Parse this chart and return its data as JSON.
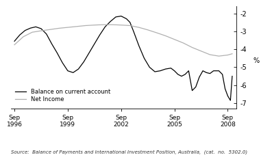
{
  "title": "",
  "ylabel": "%",
  "source_text": "Source:  Balance of Payments and International Investment Position, Australia,  (cat.  no.  5302.0)",
  "x_tick_labels": [
    "Sep\n1996",
    "Sep\n1999",
    "Sep\n2002",
    "Sep\n2005",
    "Sep\n2008"
  ],
  "x_tick_positions": [
    0,
    3,
    6,
    9,
    12
  ],
  "ylim": [
    -7.3,
    -1.6
  ],
  "yticks": [
    -7,
    -6,
    -5,
    -4,
    -3,
    -2
  ],
  "legend_entries": [
    "Balance on current account",
    "Net Income"
  ],
  "line_colors": [
    "#000000",
    "#b0b0b0"
  ],
  "balance_x": [
    0,
    0.3,
    0.6,
    0.9,
    1.2,
    1.5,
    1.8,
    2.1,
    2.4,
    2.7,
    3.0,
    3.3,
    3.6,
    3.9,
    4.2,
    4.5,
    4.8,
    5.1,
    5.4,
    5.7,
    6.0,
    6.3,
    6.5,
    6.7,
    7.0,
    7.3,
    7.6,
    7.9,
    8.2,
    8.5,
    8.8,
    9.0,
    9.2,
    9.4,
    9.6,
    9.8,
    10.0,
    10.2,
    10.4,
    10.6,
    10.8,
    11.0,
    11.2,
    11.5,
    11.7,
    11.85,
    12.0,
    12.15,
    12.25
  ],
  "balance_y": [
    -3.55,
    -3.2,
    -2.95,
    -2.82,
    -2.75,
    -2.85,
    -3.15,
    -3.7,
    -4.2,
    -4.75,
    -5.2,
    -5.3,
    -5.1,
    -4.7,
    -4.2,
    -3.7,
    -3.2,
    -2.75,
    -2.45,
    -2.2,
    -2.15,
    -2.3,
    -2.5,
    -3.0,
    -3.8,
    -4.5,
    -5.0,
    -5.25,
    -5.2,
    -5.1,
    -5.05,
    -5.2,
    -5.4,
    -5.5,
    -5.4,
    -5.2,
    -6.3,
    -6.1,
    -5.55,
    -5.2,
    -5.3,
    -5.35,
    -5.2,
    -5.2,
    -5.4,
    -6.2,
    -6.6,
    -6.85,
    -5.5
  ],
  "netincome_x": [
    0,
    0.5,
    1.0,
    1.5,
    2.0,
    2.5,
    3.0,
    3.5,
    4.0,
    4.5,
    5.0,
    5.5,
    6.0,
    6.5,
    7.0,
    7.5,
    8.0,
    8.5,
    9.0,
    9.5,
    10.0,
    10.5,
    11.0,
    11.5,
    12.0,
    12.25
  ],
  "netincome_y": [
    -3.75,
    -3.3,
    -3.05,
    -2.97,
    -2.9,
    -2.83,
    -2.78,
    -2.73,
    -2.68,
    -2.65,
    -2.63,
    -2.63,
    -2.65,
    -2.68,
    -2.78,
    -2.92,
    -3.08,
    -3.25,
    -3.45,
    -3.65,
    -3.9,
    -4.1,
    -4.3,
    -4.38,
    -4.32,
    -4.25
  ]
}
